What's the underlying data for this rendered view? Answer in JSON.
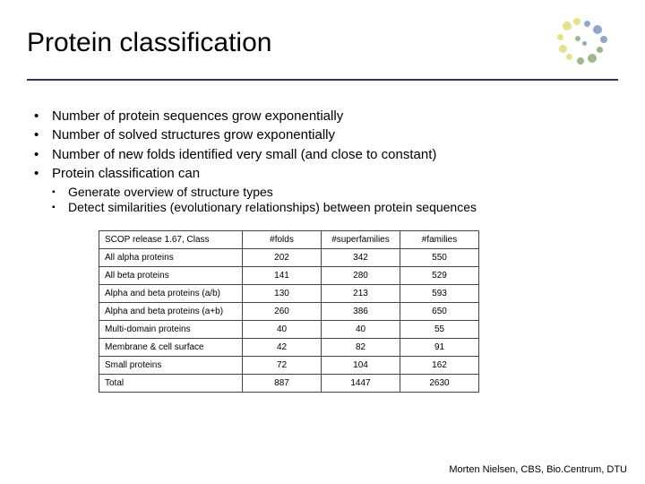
{
  "title": "Protein classification",
  "bullets": [
    "Number of protein sequences grow exponentially",
    "Number of solved structures grow exponentially",
    "Number of new folds identified very small (and close to constant)",
    "Protein classification can"
  ],
  "sub_bullets": [
    "Generate overview of structure types",
    "Detect similarities (evolutionary relationships) between protein sequences"
  ],
  "table": {
    "headers": [
      "SCOP release 1.67, Class",
      "#folds",
      "#superfamilies",
      "#families"
    ],
    "rows": [
      [
        "All alpha proteins",
        "202",
        "342",
        "550"
      ],
      [
        "All beta proteins",
        "141",
        "280",
        "529"
      ],
      [
        "Alpha and beta proteins (a/b)",
        "130",
        "213",
        "593"
      ],
      [
        "Alpha and beta proteins (a+b)",
        "260",
        "386",
        "650"
      ],
      [
        "Multi-domain proteins",
        "40",
        "40",
        "55"
      ],
      [
        "Membrane & cell surface",
        "42",
        "82",
        "91"
      ],
      [
        "Small proteins",
        "72",
        "104",
        "162"
      ],
      [
        "Total",
        "887",
        "1447",
        "2630"
      ]
    ]
  },
  "footer": "Morten Nielsen, CBS, Bio.Centrum, DTU",
  "logo_colors": {
    "yellow": "#e6e28a",
    "blue": "#8fa8c8",
    "green": "#9fb88a"
  }
}
